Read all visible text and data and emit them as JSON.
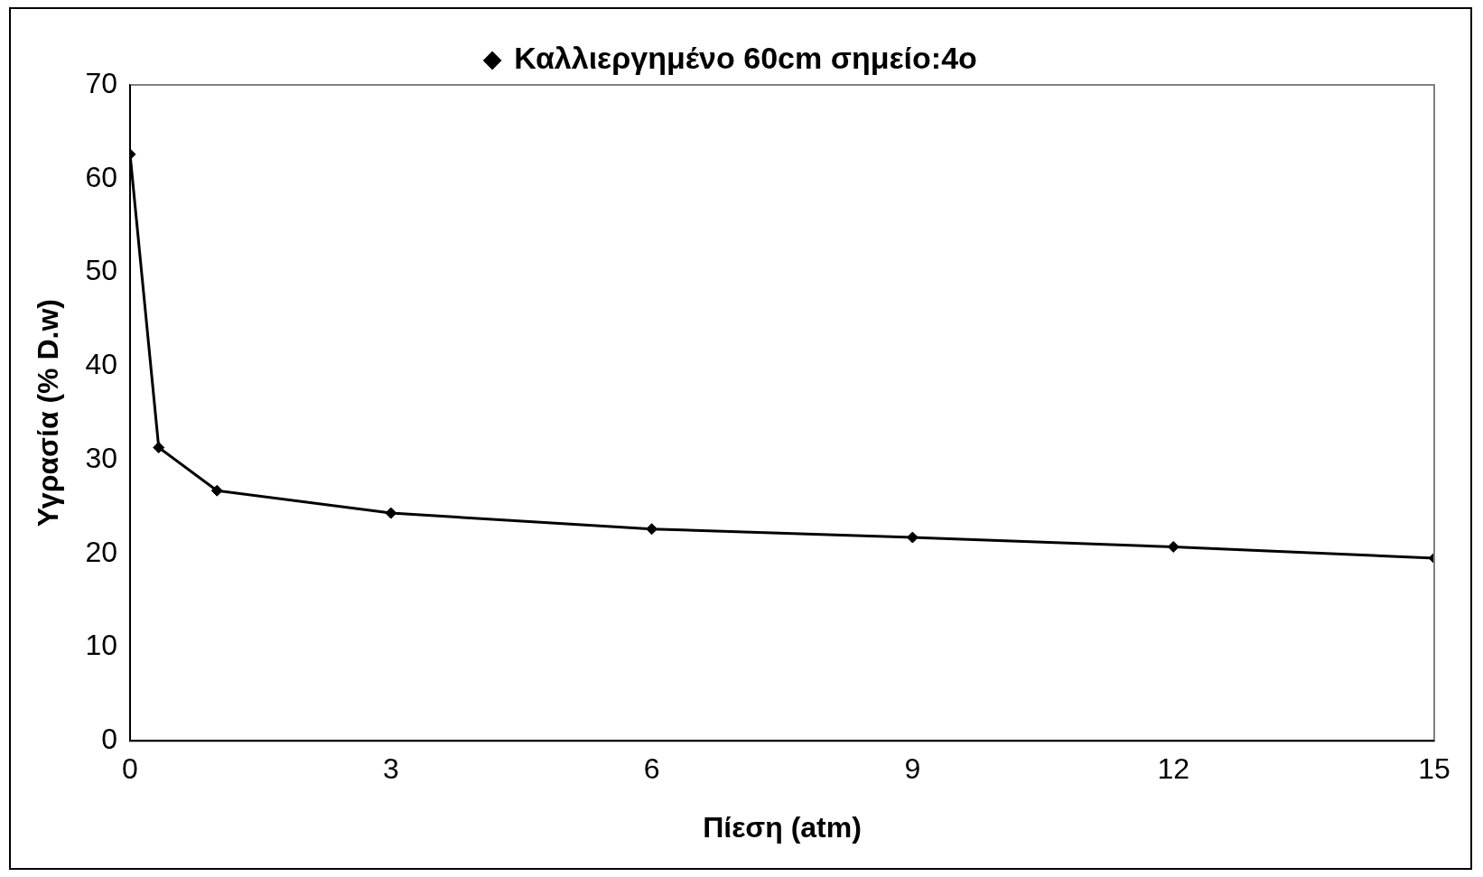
{
  "chart_data": {
    "type": "line",
    "xlabel": "Πίεση (atm)",
    "ylabel": "Υγρασία (% D.w)",
    "series": [
      {
        "name": "Καλλιεργημένο 60cm σημείο:4ο",
        "color": "#000000",
        "x": [
          0,
          0.33,
          1,
          3,
          6,
          9,
          12,
          15
        ],
        "values": [
          62.6,
          31.3,
          26.7,
          24.3,
          22.6,
          21.7,
          20.7,
          19.5
        ]
      }
    ],
    "xlim": [
      0,
      15
    ],
    "xticks": [
      0,
      3,
      6,
      9,
      12,
      15
    ],
    "ylim": [
      0,
      70
    ],
    "yticks": [
      0,
      10,
      20,
      30,
      40,
      50,
      60,
      70
    ],
    "grid": false,
    "legend": "top",
    "marker": "diamond",
    "line_style": "solid"
  }
}
